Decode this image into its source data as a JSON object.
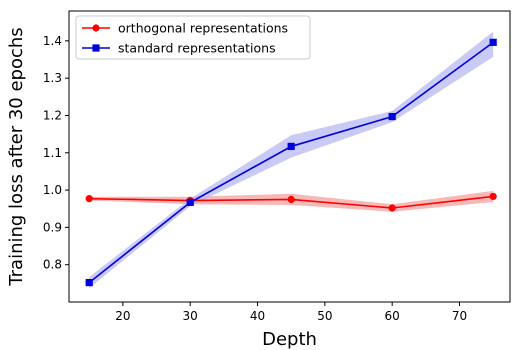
{
  "chart_data": {
    "type": "line",
    "xlabel": "Depth",
    "ylabel": "Training loss after 30 epochs",
    "xlim": [
      12,
      77.5
    ],
    "ylim": [
      0.7,
      1.48
    ],
    "x_ticks": [
      20,
      30,
      40,
      50,
      60,
      70
    ],
    "y_ticks": [
      0.8,
      0.9,
      1.0,
      1.1,
      1.2,
      1.3,
      1.4
    ],
    "grid": false,
    "legend_position": "top-left",
    "x": [
      15,
      30,
      45,
      60,
      75
    ],
    "series": [
      {
        "name": "orthogonal representations",
        "color": "#ff0000",
        "band_color": "#f4a0a0",
        "marker": "circle",
        "values": [
          0.977,
          0.972,
          0.975,
          0.952,
          0.983
        ],
        "lower": [
          0.972,
          0.962,
          0.96,
          0.942,
          0.968
        ],
        "upper": [
          0.982,
          0.982,
          0.99,
          0.962,
          0.998
        ]
      },
      {
        "name": "standard representations",
        "color": "#0000dd",
        "band_color": "#b8b8f4",
        "marker": "square",
        "values": [
          0.752,
          0.967,
          1.117,
          1.197,
          1.396
        ],
        "lower": [
          0.737,
          0.957,
          1.087,
          1.182,
          1.357
        ],
        "upper": [
          0.767,
          0.977,
          1.147,
          1.212,
          1.425
        ]
      }
    ]
  }
}
